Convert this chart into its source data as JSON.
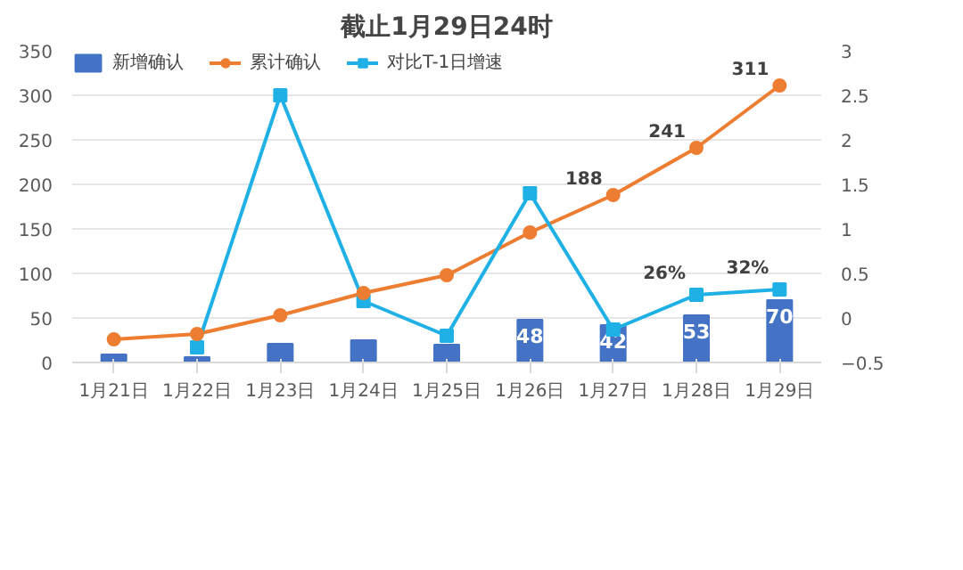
{
  "chart_data": {
    "type": "bar",
    "title": "截止1月29日24时",
    "categories": [
      "1月21日",
      "1月22日",
      "1月23日",
      "1月24日",
      "1月25日",
      "1月26日",
      "1月27日",
      "1月28日",
      "1月29日"
    ],
    "series": [
      {
        "name": "新增确认",
        "color": "#4472c4",
        "values": [
          9,
          6,
          21,
          25,
          20,
          48,
          42,
          53,
          70
        ],
        "value_labels": [
          null,
          null,
          null,
          null,
          null,
          "48",
          "42",
          "53",
          "70"
        ]
      },
      {
        "name": "累计确认",
        "type": "line",
        "color": "#ed7d31",
        "marker": "circle",
        "values": [
          26,
          32,
          53,
          78,
          98,
          146,
          188,
          241,
          311
        ],
        "value_labels": [
          null,
          null,
          null,
          null,
          null,
          null,
          "188",
          "241",
          "311"
        ]
      },
      {
        "name": "对比T-1日增速",
        "type": "line",
        "axis": "y2",
        "color": "#1fb1e6",
        "marker": "square",
        "values": [
          null,
          -0.33,
          2.5,
          0.19,
          -0.2,
          1.4,
          -0.13,
          0.26,
          0.32
        ],
        "value_labels": [
          null,
          null,
          null,
          null,
          null,
          null,
          null,
          "26%",
          "32%"
        ]
      }
    ],
    "ylim": [
      0,
      350
    ],
    "yticks": [
      0,
      50,
      100,
      150,
      200,
      250,
      300,
      350
    ],
    "y2lim": [
      -0.5,
      3
    ],
    "y2ticks": [
      -0.5,
      0,
      0.5,
      1,
      1.5,
      2,
      2.5,
      3
    ],
    "grid": "y",
    "legend": "top left",
    "line_style": "solid"
  }
}
